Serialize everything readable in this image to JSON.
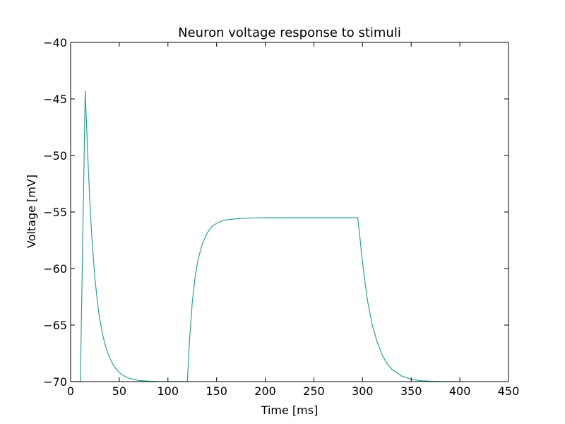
{
  "chart_data": {
    "type": "line",
    "title": "Neuron voltage response to stimuli",
    "xlabel": "Time [ms]",
    "ylabel": "Voltage [mV]",
    "xlim": [
      0,
      450
    ],
    "ylim": [
      -70,
      -40
    ],
    "xticks": [
      0,
      50,
      100,
      150,
      200,
      250,
      300,
      350,
      400,
      450
    ],
    "yticks": [
      -40,
      -45,
      -50,
      -55,
      -60,
      -65,
      -70
    ],
    "xtick_labels": [
      "0",
      "50",
      "100",
      "150",
      "200",
      "250",
      "300",
      "350",
      "400",
      "450"
    ],
    "ytick_labels": [
      "−40",
      "−45",
      "−50",
      "−55",
      "−60",
      "−65",
      "−70"
    ],
    "grid": false,
    "series": [
      {
        "color": "#2aa198",
        "x": [
          0,
          10,
          15,
          18,
          20,
          22,
          25,
          28,
          30,
          33,
          36,
          40,
          45,
          50,
          55,
          60,
          70,
          80,
          90,
          100,
          110,
          120,
          122,
          125,
          128,
          131,
          135,
          140,
          145,
          150,
          155,
          160,
          170,
          180,
          190,
          200,
          220,
          250,
          280,
          295,
          297,
          300,
          305,
          310,
          315,
          320,
          325,
          330,
          340,
          350,
          360,
          370,
          380,
          390,
          400
        ],
        "y": [
          -70,
          -70,
          -44.3,
          -50.8,
          -54.5,
          -57.5,
          -60.9,
          -63.3,
          -64.5,
          -65.9,
          -66.9,
          -67.9,
          -68.7,
          -69.2,
          -69.5,
          -69.7,
          -69.9,
          -69.96,
          -69.99,
          -70,
          -70,
          -70,
          -66.6,
          -63.0,
          -60.7,
          -59.2,
          -57.9,
          -56.9,
          -56.3,
          -56.0,
          -55.8,
          -55.7,
          -55.6,
          -55.55,
          -55.52,
          -55.5,
          -55.5,
          -55.5,
          -55.5,
          -55.5,
          -57.0,
          -59.5,
          -62.8,
          -65.0,
          -66.5,
          -67.6,
          -68.4,
          -68.9,
          -69.5,
          -69.8,
          -69.92,
          -69.97,
          -69.99,
          -70,
          -70
        ]
      }
    ]
  }
}
